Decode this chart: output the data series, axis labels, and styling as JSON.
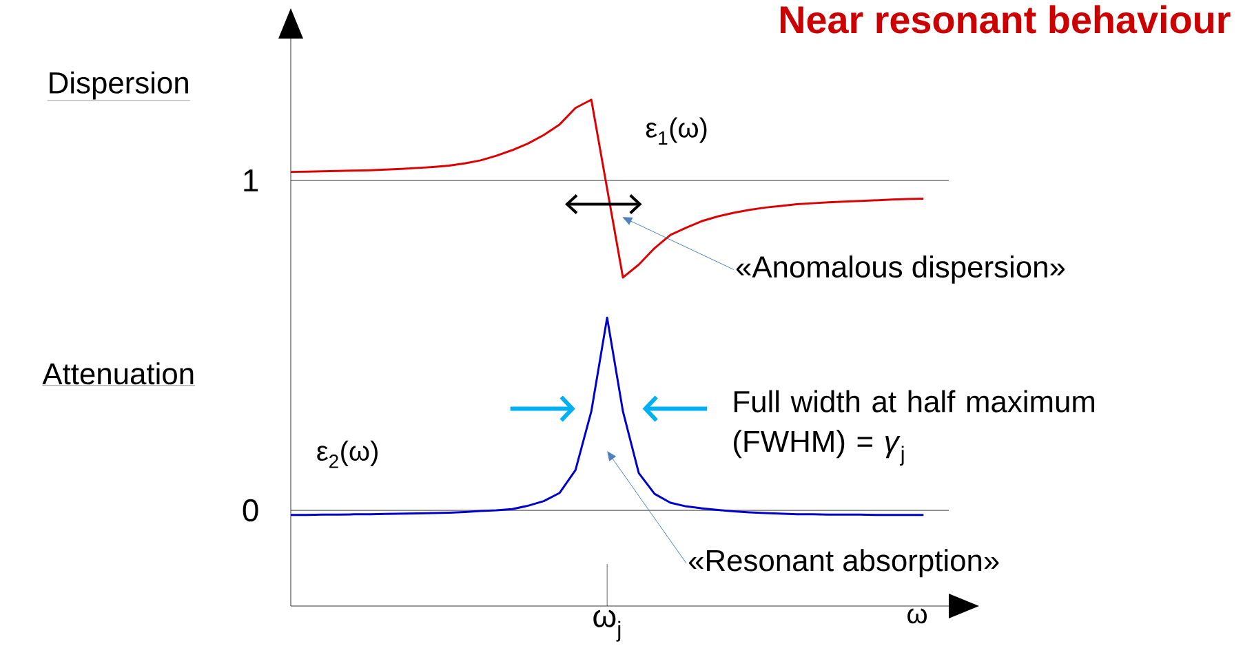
{
  "chart_data": {
    "type": "line",
    "title": "Near resonant behaviour",
    "xlabel": "ω",
    "categories": [
      null,
      null,
      null,
      null,
      null,
      null,
      null,
      null,
      null,
      null,
      null,
      null,
      null,
      null,
      null,
      null,
      null,
      null,
      null,
      null,
      "ω$_{j}$",
      null,
      null,
      null,
      null,
      null,
      null,
      null,
      null,
      null,
      null,
      null,
      null,
      null,
      null,
      null,
      null,
      null,
      null,
      null,
      null
    ],
    "ylim": [
      -0.29,
      1.43
    ],
    "yticks": [
      {
        "value": 0,
        "label": "0"
      },
      {
        "value": 1,
        "label": "1"
      }
    ],
    "marker": "none",
    "line_style": "solid",
    "series": [
      {
        "name": "ε$_{1}$(ω)",
        "color": "#dd0000",
        "values": [
          1.026,
          1.027,
          1.028,
          1.029,
          1.03,
          1.031,
          1.033,
          1.035,
          1.038,
          1.041,
          1.045,
          1.052,
          1.061,
          1.075,
          1.092,
          1.112,
          1.138,
          1.17,
          1.22,
          1.245,
          0.975,
          0.706,
          0.745,
          0.795,
          0.835,
          0.857,
          0.877,
          0.891,
          0.902,
          0.911,
          0.918,
          0.923,
          0.928,
          0.931,
          0.934,
          0.936,
          0.938,
          0.94,
          0.942,
          0.944,
          0.945
        ]
      },
      {
        "name": "ε$_{2}$(ω)",
        "color": "#0000cc",
        "values": [
          -0.014,
          -0.014,
          -0.013,
          -0.013,
          -0.012,
          -0.012,
          -0.011,
          -0.01,
          -0.009,
          -0.008,
          -0.007,
          -0.005,
          -0.002,
          0.0,
          0.004,
          0.014,
          0.028,
          0.053,
          0.122,
          0.3,
          0.584,
          0.3,
          0.113,
          0.05,
          0.023,
          0.012,
          0.006,
          0.001,
          -0.003,
          -0.006,
          -0.008,
          -0.01,
          -0.012,
          -0.012,
          -0.013,
          -0.013,
          -0.013,
          -0.014,
          -0.014,
          -0.014,
          -0.014
        ]
      }
    ],
    "ref_lines": [
      {
        "axis": "y",
        "value": 1,
        "color": "#000000"
      },
      {
        "axis": "y",
        "value": 0,
        "color": "#000000"
      }
    ],
    "annotations": [
      "Dispersion",
      "Attenuation",
      "«Anomalous dispersion»",
      "Full width at half maximum (FWHM) = *γ*$_{j}$",
      "«Resonant absorption»"
    ]
  }
}
